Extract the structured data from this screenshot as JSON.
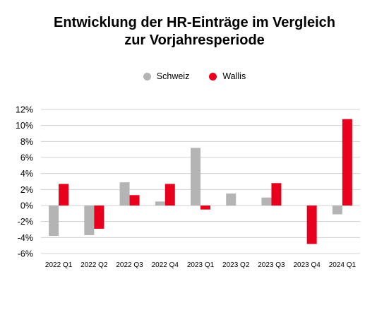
{
  "title_line1": "Entwicklung der HR-Einträge im Vergleich",
  "title_line2": "zur Vorjahresperiode",
  "legend": [
    {
      "label": "Schweiz",
      "color": "#b4b4b4"
    },
    {
      "label": "Wallis",
      "color": "#e8001c"
    }
  ],
  "chart_data": {
    "type": "bar",
    "title": "Entwicklung der HR-Einträge im Vergleich zur Vorjahresperiode",
    "categories": [
      "2022 Q1",
      "2022 Q2",
      "2022 Q3",
      "2022 Q4",
      "2023 Q1",
      "2023 Q2",
      "2023 Q3",
      "2023 Q4",
      "2024 Q1"
    ],
    "series": [
      {
        "name": "Schweiz",
        "color": "#b4b4b4",
        "values": [
          -3.8,
          -3.7,
          2.9,
          0.5,
          7.2,
          1.5,
          1.0,
          0.0,
          -1.1
        ]
      },
      {
        "name": "Wallis",
        "color": "#e8001c",
        "values": [
          2.7,
          -2.9,
          1.3,
          2.7,
          -0.5,
          0.0,
          2.8,
          -4.8,
          10.8
        ]
      }
    ],
    "ylim": [
      -6,
      12
    ],
    "yticks": [
      "-6%",
      "-4%",
      "-2%",
      "0%",
      "2%",
      "4%",
      "6%",
      "8%",
      "10%",
      "12%"
    ],
    "ytick_values": [
      -6,
      -4,
      -2,
      0,
      2,
      4,
      6,
      8,
      10,
      12
    ],
    "grid": true,
    "legend_position": "top-center"
  }
}
